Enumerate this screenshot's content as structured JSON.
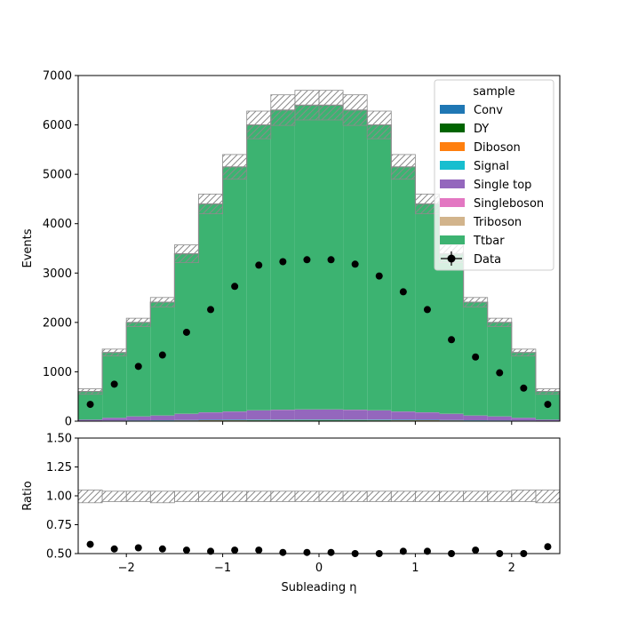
{
  "chart_data": {
    "type": "bar",
    "x_bin_edges": [
      -2.5,
      -2.25,
      -2.0,
      -1.75,
      -1.5,
      -1.25,
      -1.0,
      -0.75,
      -0.5,
      -0.25,
      0.0,
      0.25,
      0.5,
      0.75,
      1.0,
      1.25,
      1.5,
      1.75,
      2.0,
      2.25,
      2.5
    ],
    "xlabel": "Subleading η",
    "xlim": [
      -2.5,
      2.5
    ],
    "x_ticks": [
      -2,
      -1,
      0,
      1,
      2
    ],
    "x_tick_labels": [
      "−2",
      "−1",
      "0",
      "1",
      "2"
    ],
    "main_panel": {
      "ylabel": "Events",
      "ylim": [
        0,
        7000
      ],
      "y_ticks": [
        0,
        1000,
        2000,
        3000,
        4000,
        5000,
        6000,
        7000
      ],
      "stack_series": [
        {
          "name": "Conv",
          "color": "#1f77b4",
          "values": [
            2,
            4,
            5,
            6,
            8,
            9,
            10,
            11,
            12,
            12,
            12,
            12,
            11,
            10,
            9,
            8,
            6,
            5,
            4,
            2
          ]
        },
        {
          "name": "DY",
          "color": "#006400",
          "values": [
            1,
            2,
            3,
            3,
            4,
            5,
            5,
            6,
            6,
            6,
            6,
            6,
            6,
            5,
            5,
            4,
            3,
            3,
            2,
            1
          ]
        },
        {
          "name": "Diboson",
          "color": "#ff7f0e",
          "values": [
            1,
            2,
            2,
            3,
            3,
            4,
            4,
            4,
            5,
            5,
            5,
            5,
            4,
            4,
            4,
            3,
            3,
            2,
            2,
            1
          ]
        },
        {
          "name": "Signal",
          "color": "#17becf",
          "values": [
            2,
            4,
            5,
            6,
            7,
            8,
            9,
            10,
            10,
            11,
            11,
            10,
            10,
            9,
            8,
            7,
            6,
            5,
            4,
            2
          ]
        },
        {
          "name": "Single top",
          "color": "#9467bd",
          "values": [
            25,
            55,
            80,
            95,
            125,
            150,
            165,
            185,
            195,
            200,
            200,
            195,
            185,
            165,
            150,
            125,
            95,
            80,
            55,
            25
          ]
        },
        {
          "name": "Singleboson",
          "color": "#e377c2",
          "values": [
            1,
            2,
            2,
            2,
            3,
            3,
            3,
            4,
            4,
            4,
            4,
            4,
            4,
            3,
            3,
            3,
            2,
            2,
            2,
            1
          ]
        },
        {
          "name": "Triboson",
          "color": "#d2b48c",
          "values": [
            0,
            0,
            0,
            0,
            0,
            0,
            0,
            0,
            0,
            0,
            0,
            0,
            0,
            0,
            0,
            0,
            0,
            0,
            0,
            0
          ]
        },
        {
          "name": "Ttbar",
          "color": "#3cb371",
          "values": [
            568,
            1321,
            1903,
            2295,
            3240,
            4221,
            4954,
            5780,
            6068,
            6162,
            6162,
            6068,
            5780,
            4954,
            4221,
            3240,
            2295,
            1903,
            1321,
            568
          ]
        }
      ],
      "mc_total": [
        600,
        1390,
        2000,
        2410,
        3390,
        4400,
        5150,
        6000,
        6300,
        6400,
        6400,
        6300,
        6000,
        5150,
        4400,
        3390,
        2410,
        2000,
        1390,
        600
      ],
      "mc_uncertainty": [
        55,
        70,
        85,
        95,
        180,
        200,
        250,
        280,
        310,
        300,
        300,
        310,
        280,
        250,
        200,
        180,
        95,
        85,
        70,
        55
      ],
      "data": [
        340,
        750,
        1110,
        1340,
        1800,
        2260,
        2730,
        3160,
        3230,
        3270,
        3270,
        3180,
        2940,
        2620,
        2260,
        1650,
        1300,
        980,
        670,
        340
      ],
      "legend": {
        "title": "sample",
        "placement": "top-right",
        "data_label": "Data"
      }
    },
    "ratio_panel": {
      "ylabel": "Ratio",
      "ylim": [
        0.5,
        1.5
      ],
      "y_ticks": [
        0.5,
        0.75,
        1.0,
        1.25,
        1.5
      ],
      "y_tick_labels": [
        "0.50",
        "0.75",
        "1.00",
        "1.25",
        "1.50"
      ],
      "values": [
        0.58,
        0.54,
        0.55,
        0.54,
        0.53,
        0.52,
        0.53,
        0.53,
        0.51,
        0.51,
        0.51,
        0.5,
        0.49,
        0.52,
        0.52,
        0.5,
        0.53,
        0.49,
        0.48,
        0.56
      ],
      "band_low": [
        0.94,
        0.95,
        0.95,
        0.94,
        0.95,
        0.95,
        0.95,
        0.95,
        0.95,
        0.95,
        0.95,
        0.95,
        0.95,
        0.95,
        0.95,
        0.95,
        0.95,
        0.95,
        0.95,
        0.94
      ],
      "band_high": [
        1.05,
        1.04,
        1.04,
        1.04,
        1.04,
        1.04,
        1.04,
        1.04,
        1.04,
        1.04,
        1.04,
        1.04,
        1.04,
        1.04,
        1.04,
        1.04,
        1.04,
        1.04,
        1.05,
        1.05
      ]
    }
  }
}
